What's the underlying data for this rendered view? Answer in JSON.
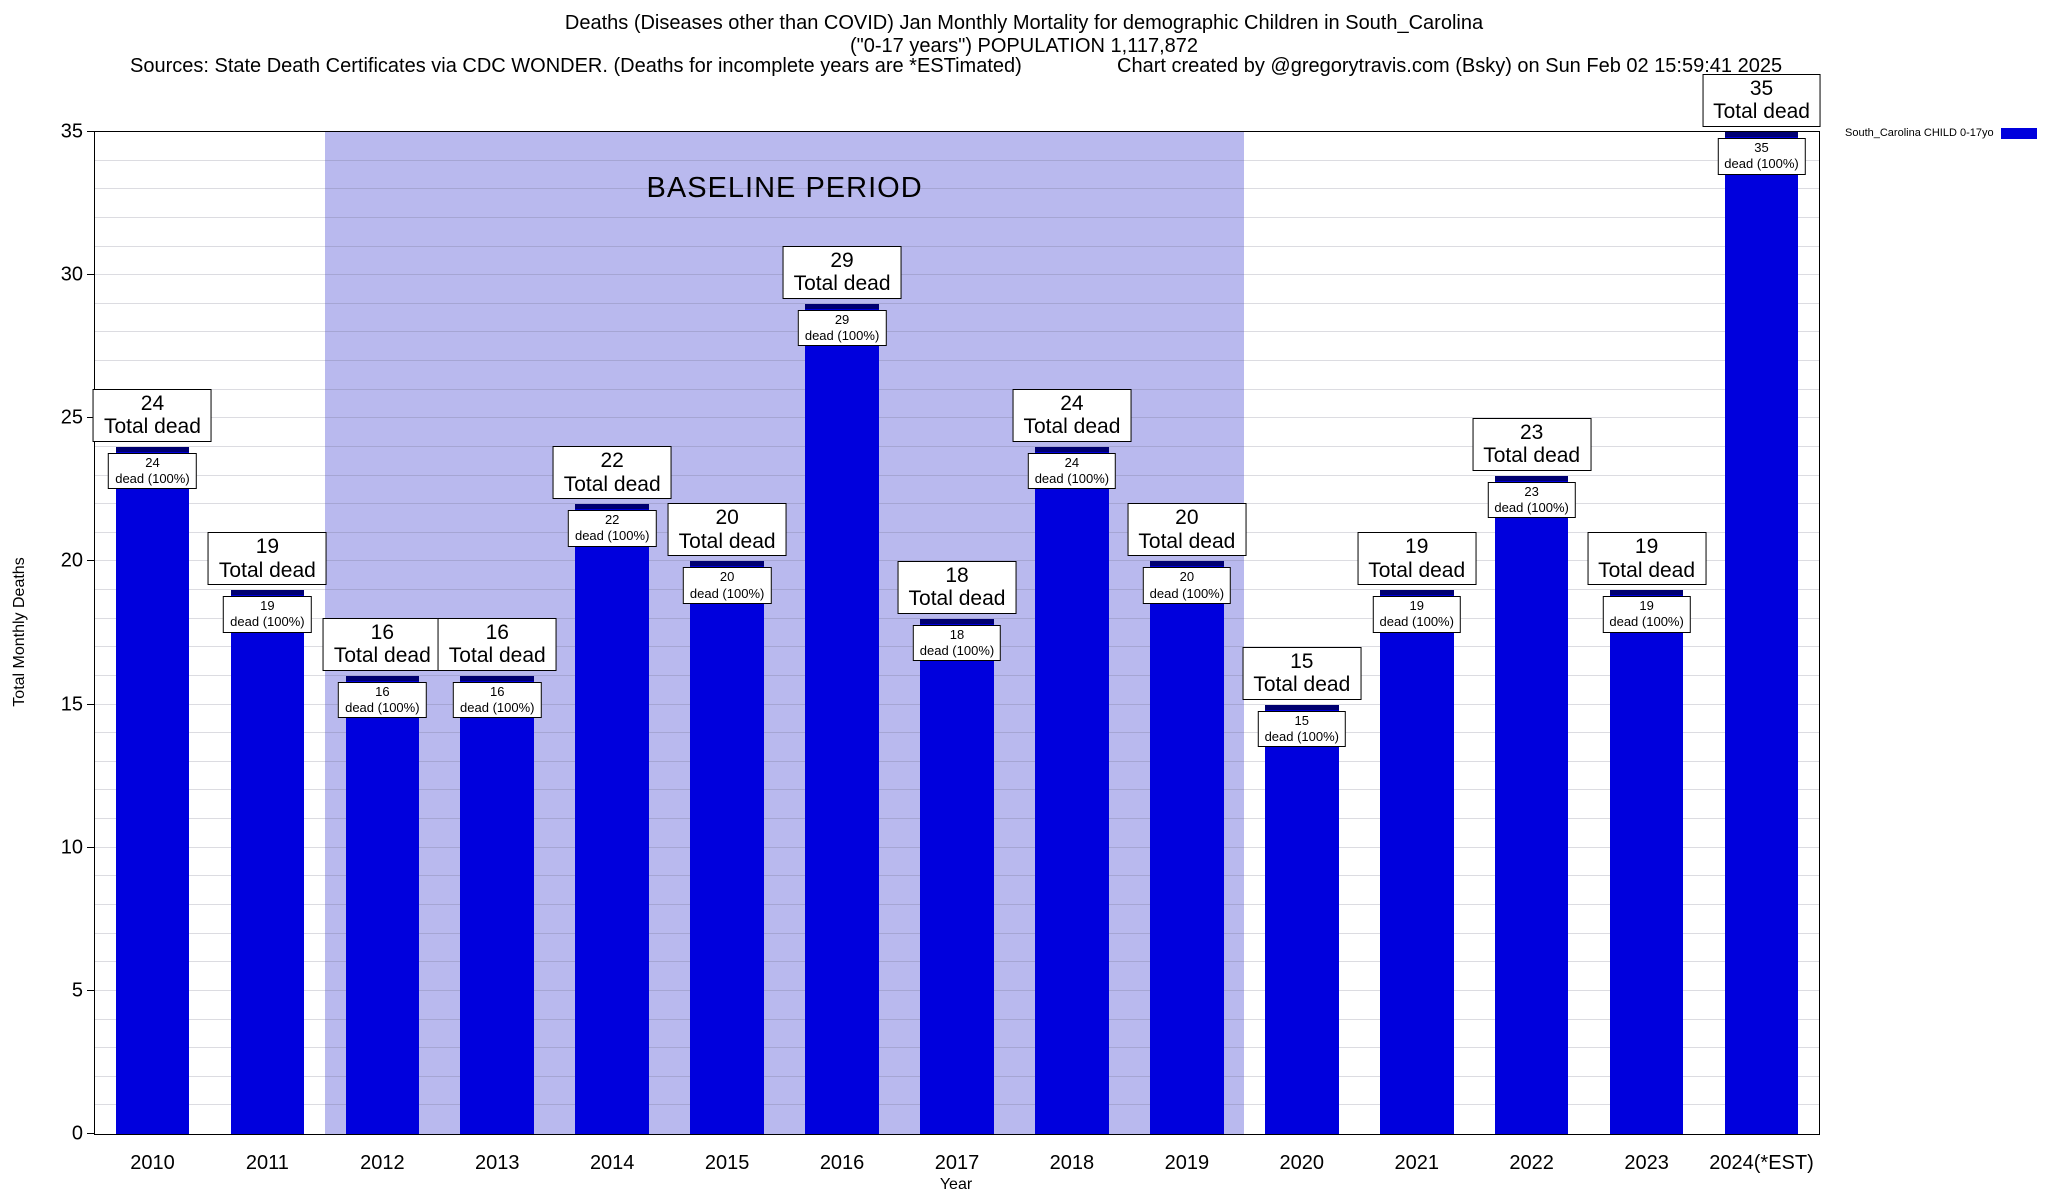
{
  "header": {
    "title_line1": "Deaths (Diseases other than COVID) Jan Monthly Mortality for demographic Children in South_Carolina",
    "title_line2": "(\"0-17 years\") POPULATION 1,117,872",
    "sources_left": "Sources: State Death Certificates via CDC WONDER. (Deaths for incomplete years are *ESTimated)",
    "credit_right": "Chart created by @gregorytravis.com (Bsky) on Sun Feb 02 15:59:41 2025"
  },
  "legend": {
    "label": "South_Carolina CHILD 0-17yo",
    "color": "#0000dd"
  },
  "chart_data": {
    "type": "bar",
    "title": "Deaths (Diseases other than COVID) Jan Monthly Mortality for demographic Children in South_Carolina",
    "xlabel": "Year",
    "ylabel": "Total Monthly Deaths",
    "ylim": [
      0,
      35
    ],
    "yticks": [
      0,
      5,
      10,
      15,
      20,
      25,
      30,
      35
    ],
    "grid_interval": 1,
    "categories": [
      "2010",
      "2011",
      "2012",
      "2013",
      "2014",
      "2015",
      "2016",
      "2017",
      "2018",
      "2019",
      "2020",
      "2021",
      "2022",
      "2023",
      "2024(*EST)"
    ],
    "values": [
      24,
      19,
      16,
      16,
      22,
      20,
      29,
      18,
      24,
      20,
      15,
      19,
      23,
      19,
      35
    ],
    "bar_color": "#0000dd",
    "bar_cap_color": "#000070",
    "bar_top_label_suffix": "Total dead",
    "bar_inner_label_suffix": "dead (100%)",
    "baseline": {
      "label": "BASELINE PERIOD",
      "start_category": "2012",
      "end_category": "2019",
      "color": "#b9b9ee"
    },
    "legend_position": "top-right"
  }
}
